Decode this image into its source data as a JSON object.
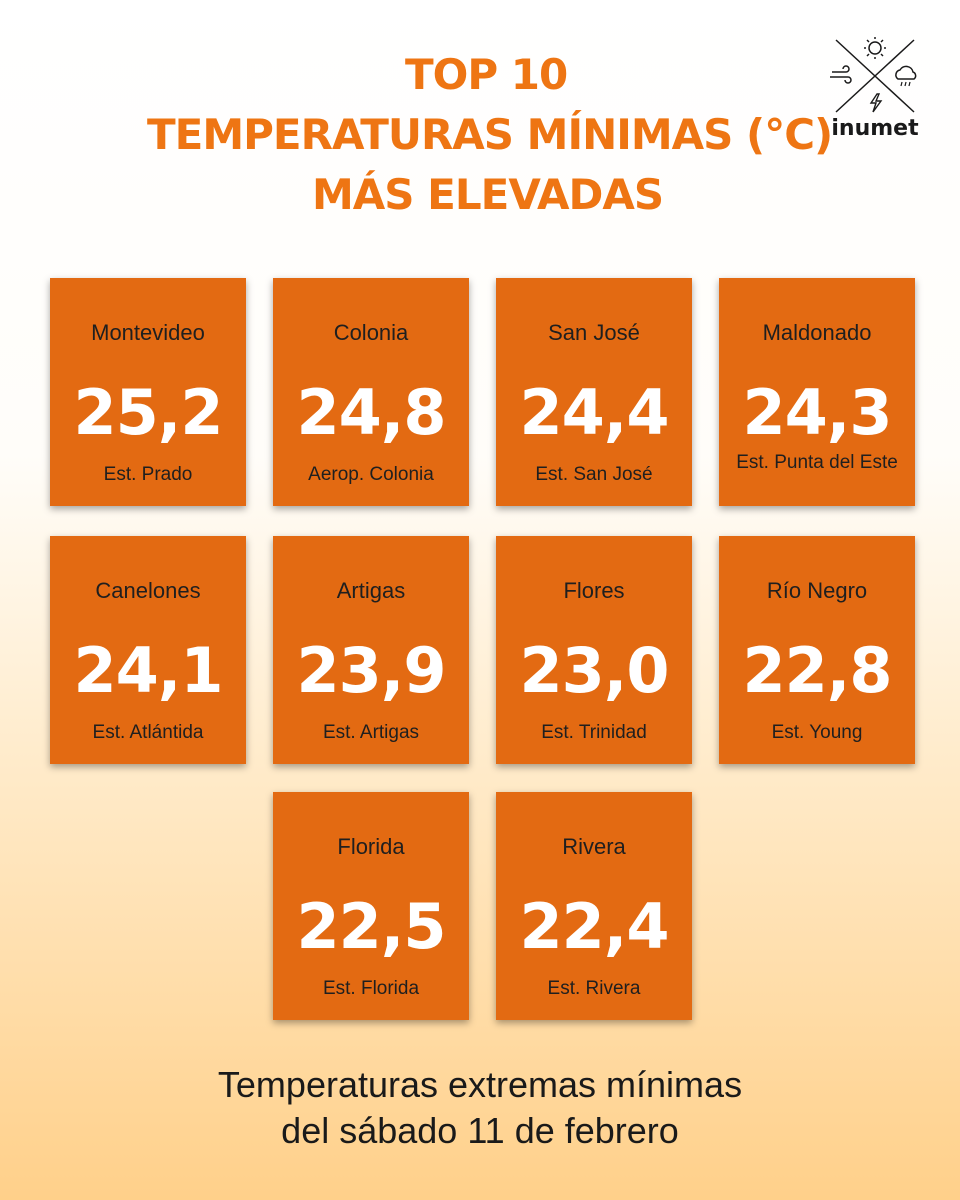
{
  "title": {
    "line1": "TOP 10",
    "line2": "TEMPERATURAS MÍNIMAS (°C)",
    "line3": "MÁS ELEVADAS"
  },
  "logo": {
    "text": "inumet"
  },
  "stations": [
    {
      "department": "Montevideo",
      "temperature": "25,2",
      "station": "Est. Prado"
    },
    {
      "department": "Colonia",
      "temperature": "24,8",
      "station": "Aerop. Colonia"
    },
    {
      "department": "San José",
      "temperature": "24,4",
      "station": "Est. San José"
    },
    {
      "department": "Maldonado",
      "temperature": "24,3",
      "station": "Est. Punta del Este"
    },
    {
      "department": "Canelones",
      "temperature": "24,1",
      "station": "Est. Atlántida"
    },
    {
      "department": "Artigas",
      "temperature": "23,9",
      "station": "Est. Artigas"
    },
    {
      "department": "Flores",
      "temperature": "23,0",
      "station": "Est. Trinidad"
    },
    {
      "department": "Río Negro",
      "temperature": "22,8",
      "station": "Est. Young"
    },
    {
      "department": "Florida",
      "temperature": "22,5",
      "station": "Est. Florida"
    },
    {
      "department": "Rivera",
      "temperature": "22,4",
      "station": "Est. Rivera"
    }
  ],
  "footer": {
    "line1": "Temperaturas extremas mínimas",
    "line2": "del sábado 11 de febrero"
  },
  "colors": {
    "title": "#ee7513",
    "card": "#e36a12"
  },
  "icons": [
    "sun-icon",
    "wind-icon",
    "rain-cloud-icon",
    "lightning-icon"
  ]
}
